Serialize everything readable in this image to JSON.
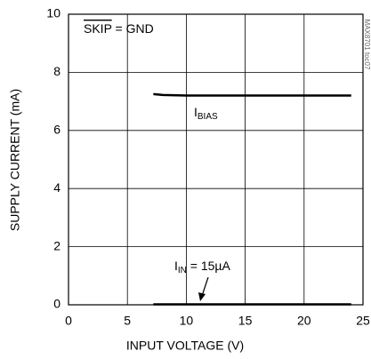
{
  "chart_data": {
    "type": "line",
    "xlabel": "INPUT VOLTAGE (V)",
    "ylabel": "SUPPLY CURRENT (mA)",
    "x": [
      7.2,
      8,
      10,
      12,
      15,
      18,
      21,
      24
    ],
    "series": [
      {
        "name": "IBIAS",
        "color": "#000000",
        "values": [
          7.25,
          7.22,
          7.2,
          7.2,
          7.2,
          7.2,
          7.2,
          7.2
        ]
      },
      {
        "name": "IIN",
        "color": "#000000",
        "values": [
          0.015,
          0.015,
          0.015,
          0.015,
          0.015,
          0.015,
          0.015,
          0.015
        ]
      }
    ],
    "xlim": [
      0,
      25
    ],
    "xticks": [
      0,
      5,
      10,
      15,
      20,
      25
    ],
    "ylim": [
      0,
      10
    ],
    "yticks": [
      0,
      2,
      4,
      6,
      8,
      10
    ],
    "grid": true,
    "annotations": [
      {
        "overline": "SKIP",
        "text": " = GND"
      },
      {
        "text": "I",
        "sub": "BIAS"
      },
      {
        "text": "I",
        "sub": "IN",
        "suffix": " = 15µA"
      }
    ],
    "watermark": "MAX8701 toc07"
  }
}
